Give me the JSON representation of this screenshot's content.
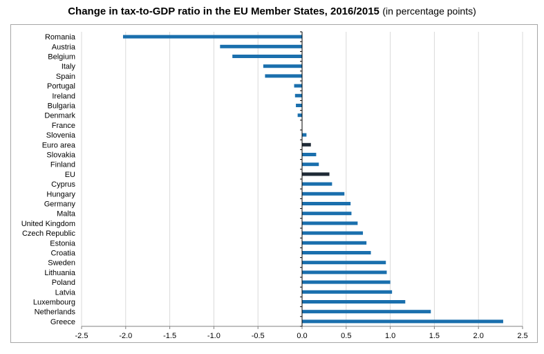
{
  "title": {
    "main": "Change in tax-to-GDP ratio in the EU Member States, 2016/2015",
    "sub": "(in percentage points)"
  },
  "chart_data": {
    "type": "bar",
    "orientation": "horizontal",
    "categories": [
      "Romania",
      "Austria",
      "Belgium",
      "Italy",
      "Spain",
      "Portugal",
      "Ireland",
      "Bulgaria",
      "Denmark",
      "France",
      "Slovenia",
      "Euro area",
      "Slovakia",
      "Finland",
      "EU",
      "Cyprus",
      "Hungary",
      "Germany",
      "Malta",
      "United Kingdom",
      "Czech Republic",
      "Estonia",
      "Croatia",
      "Sweden",
      "Lithuania",
      "Poland",
      "Latvia",
      "Luxembourg",
      "Netherlands",
      "Greece"
    ],
    "values": [
      -2.03,
      -0.93,
      -0.79,
      -0.44,
      -0.42,
      -0.09,
      -0.08,
      -0.07,
      -0.05,
      0.0,
      0.05,
      0.1,
      0.16,
      0.19,
      0.31,
      0.34,
      0.48,
      0.55,
      0.56,
      0.63,
      0.69,
      0.73,
      0.78,
      0.95,
      0.96,
      1.0,
      1.02,
      1.17,
      1.46,
      2.28
    ],
    "highlight": [
      "Euro area",
      "EU"
    ],
    "colors": {
      "bar": "#1a6fad",
      "highlight": "#1f2a36",
      "grid": "#d9d9d9",
      "axis": "#000000"
    },
    "xlim": [
      -2.5,
      2.5
    ],
    "xticks": [
      "-2.5",
      "-2.0",
      "-1.5",
      "-1.0",
      "-0.5",
      "0.0",
      "0.5",
      "1.0",
      "1.5",
      "2.0",
      "2.5"
    ],
    "xlabel": "",
    "ylabel": "",
    "grid": true,
    "legend": false
  }
}
